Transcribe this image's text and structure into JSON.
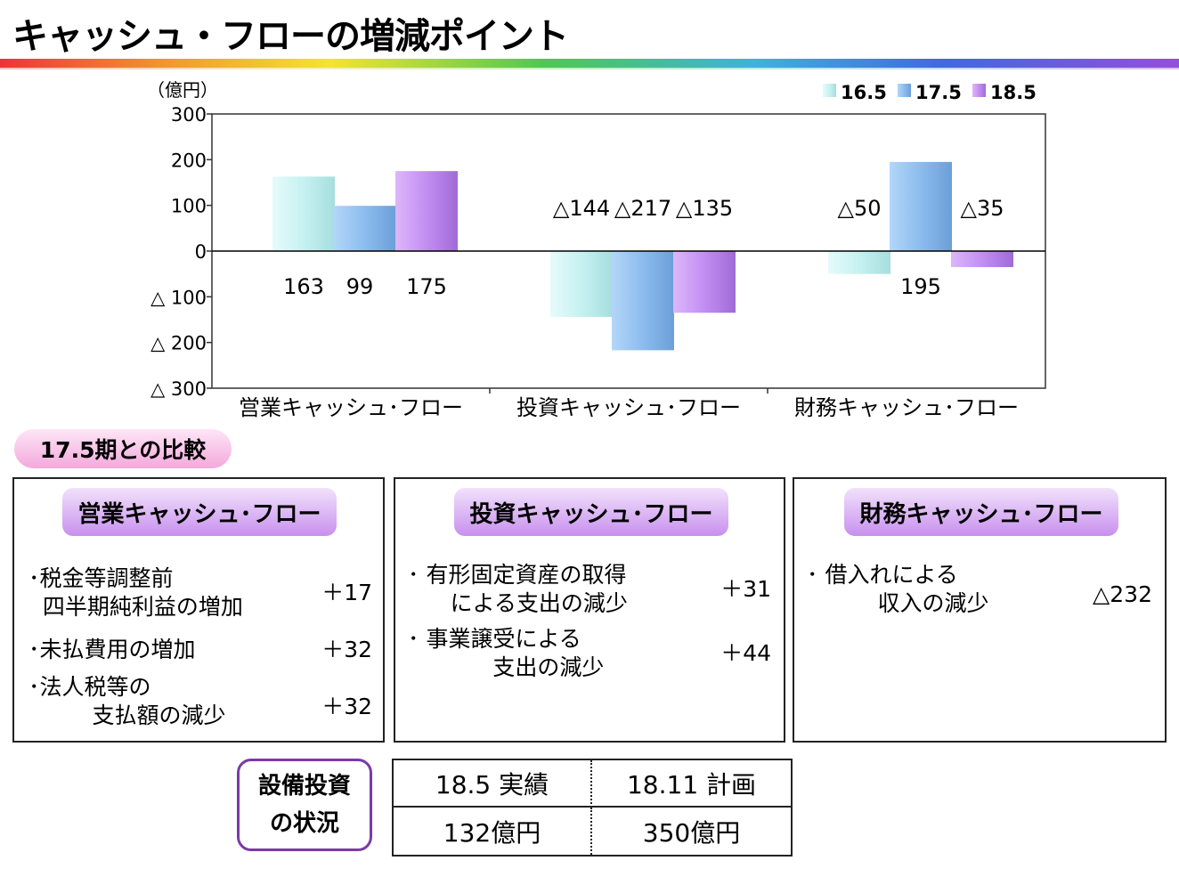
{
  "title": "キャッシュ・フローの増減ポイント",
  "chart_data": {
    "type": "bar",
    "unit_label": "（億円）",
    "categories": [
      "営業キャッシュ･フロー",
      "投資キャッシュ･フロー",
      "財務キャッシュ･フロー"
    ],
    "series": [
      {
        "name": "16.5",
        "values": [
          163,
          -144,
          -50
        ],
        "color": "#c8f4f4"
      },
      {
        "name": "17.5",
        "values": [
          99,
          -217,
          195
        ],
        "color": "#8fbef0"
      },
      {
        "name": "18.5",
        "values": [
          175,
          -135,
          -35
        ],
        "color": "#c590f2"
      }
    ],
    "data_labels": [
      [
        "163",
        "99",
        "175"
      ],
      [
        "△144",
        "△217",
        "△135"
      ],
      [
        "△50",
        "195",
        "△35"
      ]
    ],
    "y_ticks": [
      {
        "value": 300,
        "label": "300"
      },
      {
        "value": 200,
        "label": "200"
      },
      {
        "value": 100,
        "label": "100"
      },
      {
        "value": 0,
        "label": "0"
      },
      {
        "value": -100,
        "label": "△ 100"
      },
      {
        "value": -200,
        "label": "△ 200"
      },
      {
        "value": -300,
        "label": "△ 300"
      }
    ],
    "ylim": [
      -300,
      300
    ],
    "legend_position": "top-right"
  },
  "comparison": {
    "label": "17.5期との比較",
    "operating": {
      "title": "営業キャッシュ･フロー",
      "items": [
        {
          "text": "･税金等調整前\n  四半期純利益の増加",
          "value": "＋17"
        },
        {
          "text": "･未払費用の増加",
          "value": "＋32"
        },
        {
          "text": "･法人税等の\n         支払額の減少",
          "value": "＋32"
        }
      ]
    },
    "investing": {
      "title": "投資キャッシュ･フロー",
      "items": [
        {
          "text": "･ 有形固定資産の取得\n      による支出の減少",
          "value": "＋31"
        },
        {
          "text": "･ 事業譲受による\n            支出の減少",
          "value": "＋44"
        }
      ]
    },
    "financing": {
      "title": "財務キャッシュ･フロー",
      "items": [
        {
          "text": "･ 借入れによる\n          収入の減少",
          "value": "△232"
        }
      ]
    }
  },
  "capex": {
    "label_line1": "設備投資",
    "label_line2": "の状況",
    "headers": [
      "18.5 実績",
      "18.11 計画"
    ],
    "values": [
      "132億円",
      "350億円"
    ]
  }
}
